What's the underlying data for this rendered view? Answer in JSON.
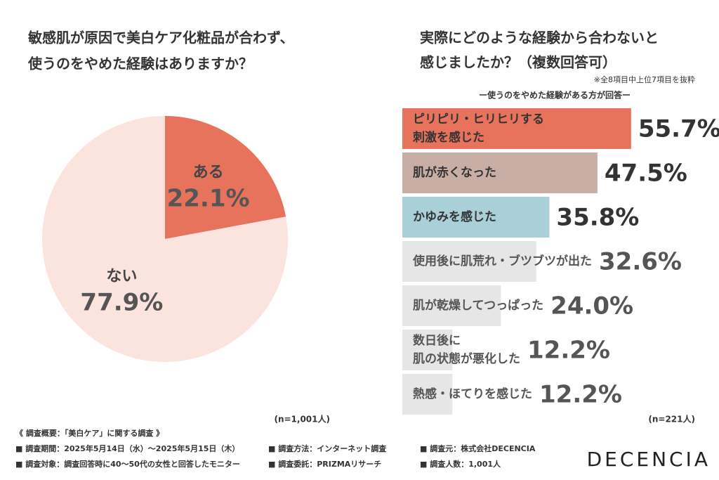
{
  "chart_data": [
    {
      "type": "pie",
      "title": [
        "敏感肌が原因で美白ケア化粧品が合わず、",
        "使うのをやめた経験はありますか？"
      ],
      "categories": [
        "ある",
        "ない"
      ],
      "values": [
        22.1,
        77.9
      ],
      "value_labels": [
        "22.1%",
        "77.9%"
      ],
      "colors": [
        "#e8735c",
        "#fbe3de"
      ],
      "note": "(n=1,001人)"
    },
    {
      "type": "bar",
      "title": [
        "実際にどのような経験から合わないと",
        "感じましたか？（複数回答可）"
      ],
      "subtitle": "※全8項目中上位7項目を抜粋",
      "annotation": "ー使うのをやめた経験がある方が回答ー",
      "categories": [
        [
          "ピリピリ・ヒリヒリする",
          "刺激を感じた"
        ],
        [
          "肌が赤くなった"
        ],
        [
          "かゆみを感じた"
        ],
        [
          "使用後に肌荒れ・ブツブツが出た"
        ],
        [
          "肌が乾燥してつっぱった"
        ],
        [
          "数日後に",
          "肌の状態が悪化した"
        ],
        [
          "熱感・ほてりを感じた"
        ]
      ],
      "values": [
        55.7,
        47.5,
        35.8,
        32.6,
        24.0,
        12.2,
        12.2
      ],
      "value_labels": [
        "55.7%",
        "47.5%",
        "35.8%",
        "32.6%",
        "24.0%",
        "12.2%",
        "12.2%"
      ],
      "colors": [
        "#e8735c",
        "#c9aea6",
        "#a9d0d8",
        "#e6e6e6",
        "#e6e6e6",
        "#e6e6e6",
        "#e6e6e6"
      ],
      "note": "(n=221人)"
    }
  ],
  "footer": {
    "heading": "《 調査概要：「美白ケア」に関する調査 》",
    "items": [
      "■ 調査期間：2025年5月14日（水）〜2025年5月15日（木）",
      "■ 調査方法：インターネット調査",
      "■ 調査元：株式会社DECENCIA",
      "■ 調査対象：調査回答時に40〜50代の女性と回答したモニター",
      "■ 調査委託：PRIZMAリサーチ",
      "■ 調査人数：1,001人"
    ],
    "logo": "DECENCIA"
  }
}
